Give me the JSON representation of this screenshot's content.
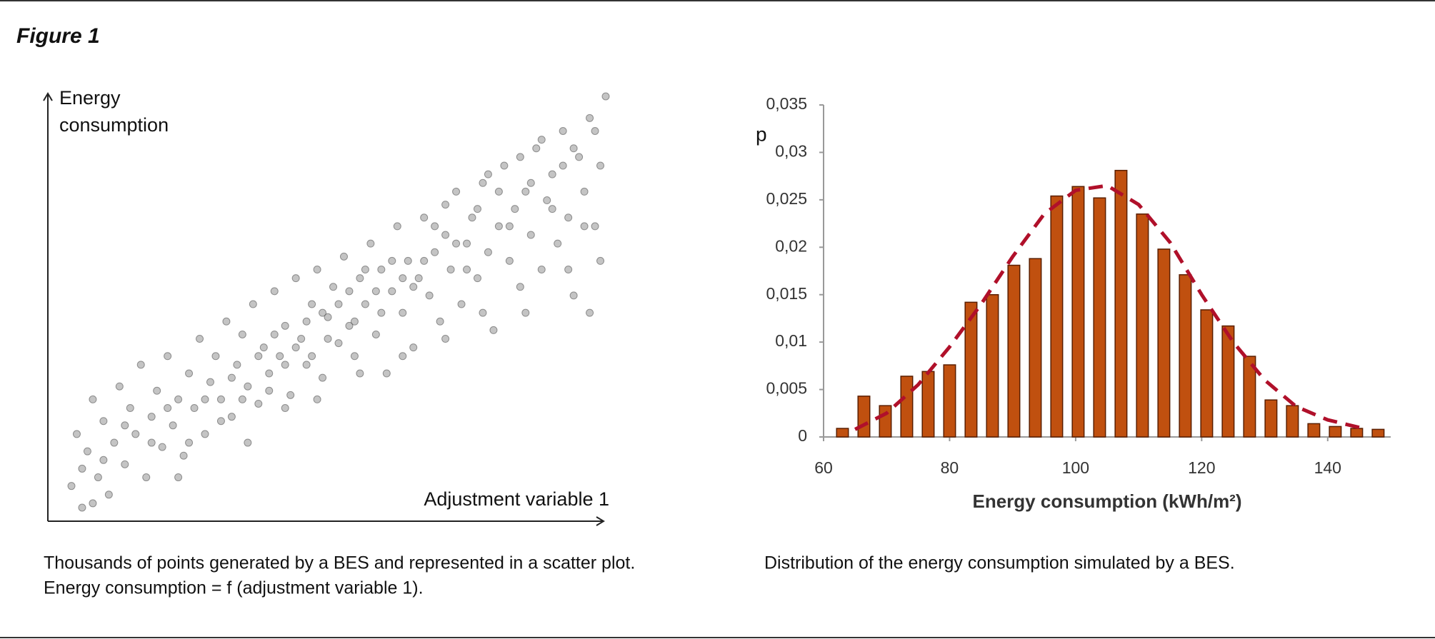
{
  "figure_title": "Figure 1",
  "chart_data": [
    {
      "type": "scatter",
      "x_label": "Adjustment variable 1",
      "y_label": [
        "Energy",
        "consumption"
      ],
      "caption": [
        "Thousands of points generated by a BES and represented in a scatter plot.",
        "Energy consumption = f  (adjustment variable 1)."
      ],
      "color": "#555555",
      "x": [
        0,
        1,
        2,
        3,
        4,
        5,
        6,
        7,
        8,
        9,
        10,
        11,
        12,
        13,
        14,
        15,
        16,
        17,
        18,
        19,
        20,
        21,
        22,
        23,
        24,
        25,
        26,
        27,
        28,
        29,
        30,
        31,
        32,
        33,
        34,
        35,
        36,
        37,
        38,
        39,
        40,
        41,
        42,
        43,
        44,
        45,
        46,
        47,
        48,
        49,
        50,
        51,
        52,
        53,
        54,
        55,
        56,
        57,
        58,
        59,
        60,
        61,
        62,
        63,
        64,
        65,
        66,
        67,
        68,
        69,
        70,
        71,
        72,
        73,
        74,
        75,
        76,
        77,
        78,
        79,
        80,
        81,
        82,
        83,
        84,
        85,
        86,
        87,
        88,
        89,
        90,
        91,
        92,
        93,
        94,
        95,
        96,
        97,
        98,
        99,
        100,
        25,
        28,
        30,
        32,
        35,
        37,
        38,
        40,
        42,
        44,
        45,
        47,
        48,
        50,
        52,
        53,
        55,
        57,
        58,
        60,
        62,
        64,
        66,
        68,
        70,
        72,
        74,
        76,
        78,
        80,
        82,
        84,
        86,
        88,
        90,
        92,
        94,
        96,
        98,
        99,
        20,
        22,
        18,
        15,
        10,
        6,
        4,
        2,
        33,
        40,
        46,
        54,
        62,
        70,
        77,
        85,
        93,
        97
      ],
      "y": [
        10,
        22,
        5,
        18,
        30,
        12,
        25,
        8,
        20,
        33,
        15,
        28,
        22,
        38,
        12,
        26,
        32,
        19,
        40,
        24,
        30,
        17,
        36,
        28,
        44,
        22,
        34,
        40,
        30,
        48,
        26,
        38,
        45,
        33,
        52,
        29,
        42,
        36,
        55,
        40,
        47,
        31,
        58,
        44,
        38,
        52,
        60,
        35,
        49,
        56,
        43,
        63,
        47,
        40,
        58,
        52,
        66,
        45,
        60,
        36,
        55,
        70,
        50,
        62,
        42,
        58,
        72,
        54,
        64,
        48,
        68,
        60,
        78,
        52,
        66,
        72,
        58,
        80,
        64,
        46,
        70,
        84,
        62,
        74,
        56,
        78,
        68,
        88,
        60,
        76,
        82,
        66,
        92,
        72,
        54,
        86,
        78,
        95,
        70,
        84,
        100,
        30,
        25,
        35,
        30,
        40,
        32,
        45,
        38,
        42,
        48,
        40,
        50,
        44,
        52,
        55,
        48,
        60,
        55,
        50,
        62,
        58,
        56,
        62,
        70,
        75,
        66,
        60,
        74,
        82,
        78,
        70,
        86,
        80,
        90,
        74,
        84,
        88,
        70,
        92,
        62,
        12,
        20,
        28,
        20,
        24,
        16,
        6,
        14,
        20,
        28,
        30,
        36,
        40,
        44,
        50,
        50,
        60,
        50
      ]
    },
    {
      "type": "histogram",
      "y_label": "p",
      "x_label": "Energy consumption  (kWh/m²)",
      "caption": "Distribution of the energy consumption simulated by a BES.",
      "color": "#c0500f",
      "bins": [
        61.3,
        64.7,
        68.1,
        71.5,
        74.9,
        78.3,
        81.7,
        85.1,
        88.5,
        91.9,
        95.3,
        98.7,
        102.1,
        105.5,
        108.9,
        112.3,
        115.7,
        119.1,
        122.5,
        125.9,
        129.3,
        132.7,
        136.1,
        139.5,
        142.9,
        146.3,
        149.7
      ],
      "values": [
        0.0009,
        0.0043,
        0.0033,
        0.0064,
        0.0069,
        0.0076,
        0.0142,
        0.015,
        0.0181,
        0.0188,
        0.0254,
        0.0264,
        0.0252,
        0.0281,
        0.0235,
        0.0198,
        0.0171,
        0.0134,
        0.0117,
        0.0085,
        0.0039,
        0.0033,
        0.0014,
        0.0011,
        0.0009,
        0.0008
      ],
      "curve": {
        "color": "#b0102a",
        "x": [
          65,
          70,
          75,
          80,
          85,
          90,
          95,
          100,
          105,
          110,
          115,
          120,
          125,
          130,
          135,
          140,
          145
        ],
        "values": [
          0.0008,
          0.0025,
          0.0055,
          0.0095,
          0.014,
          0.019,
          0.0235,
          0.026,
          0.0265,
          0.0245,
          0.0205,
          0.015,
          0.01,
          0.006,
          0.0032,
          0.0018,
          0.001
        ]
      },
      "xlim": [
        60,
        150
      ],
      "ylim": [
        0,
        0.035
      ],
      "xticks": [
        60,
        80,
        100,
        120,
        140
      ],
      "yticks": [
        0,
        {
          "value": 0.005,
          "label": "0,005"
        },
        {
          "value": 0.01,
          "label": "0,01"
        },
        {
          "value": 0.015,
          "label": "0,015"
        },
        {
          "value": 0.02,
          "label": "0,02"
        },
        {
          "value": 0.025,
          "label": "0,025"
        },
        {
          "value": 0.03,
          "label": "0,03"
        },
        {
          "value": 0.035,
          "label": "0,035"
        }
      ]
    }
  ]
}
